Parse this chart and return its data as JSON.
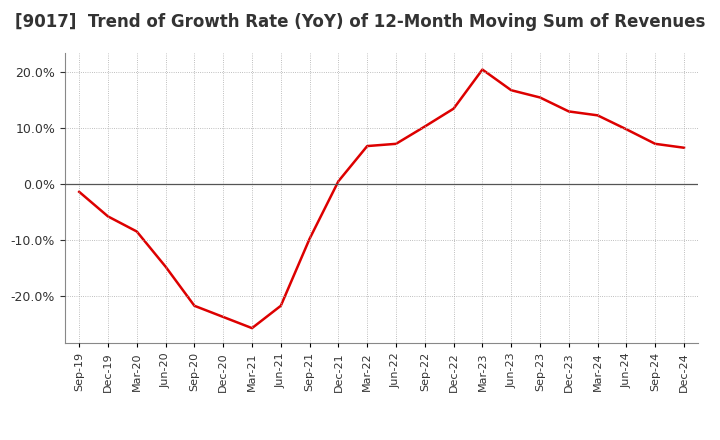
{
  "title": "[9017]  Trend of Growth Rate (YoY) of 12-Month Moving Sum of Revenues",
  "title_fontsize": 12,
  "line_color": "#dd0000",
  "background_color": "#ffffff",
  "grid_color": "#aaaaaa",
  "ylim": [
    -0.285,
    0.235
  ],
  "yticks": [
    -0.2,
    -0.1,
    0.0,
    0.1,
    0.2
  ],
  "dates": [
    "Sep-19",
    "Dec-19",
    "Mar-20",
    "Jun-20",
    "Sep-20",
    "Dec-20",
    "Mar-21",
    "Jun-21",
    "Sep-21",
    "Dec-21",
    "Mar-22",
    "Jun-22",
    "Sep-22",
    "Dec-22",
    "Mar-23",
    "Jun-23",
    "Sep-23",
    "Dec-23",
    "Mar-24",
    "Jun-24",
    "Sep-24",
    "Dec-24"
  ],
  "values": [
    -0.014,
    -0.058,
    -0.085,
    -0.148,
    -0.218,
    -0.238,
    -0.258,
    -0.218,
    -0.098,
    0.005,
    0.068,
    0.072,
    0.103,
    0.135,
    0.205,
    0.168,
    0.155,
    0.13,
    0.123,
    0.098,
    0.072,
    0.065
  ],
  "line_width": 1.8,
  "zero_line_color": "#555555"
}
